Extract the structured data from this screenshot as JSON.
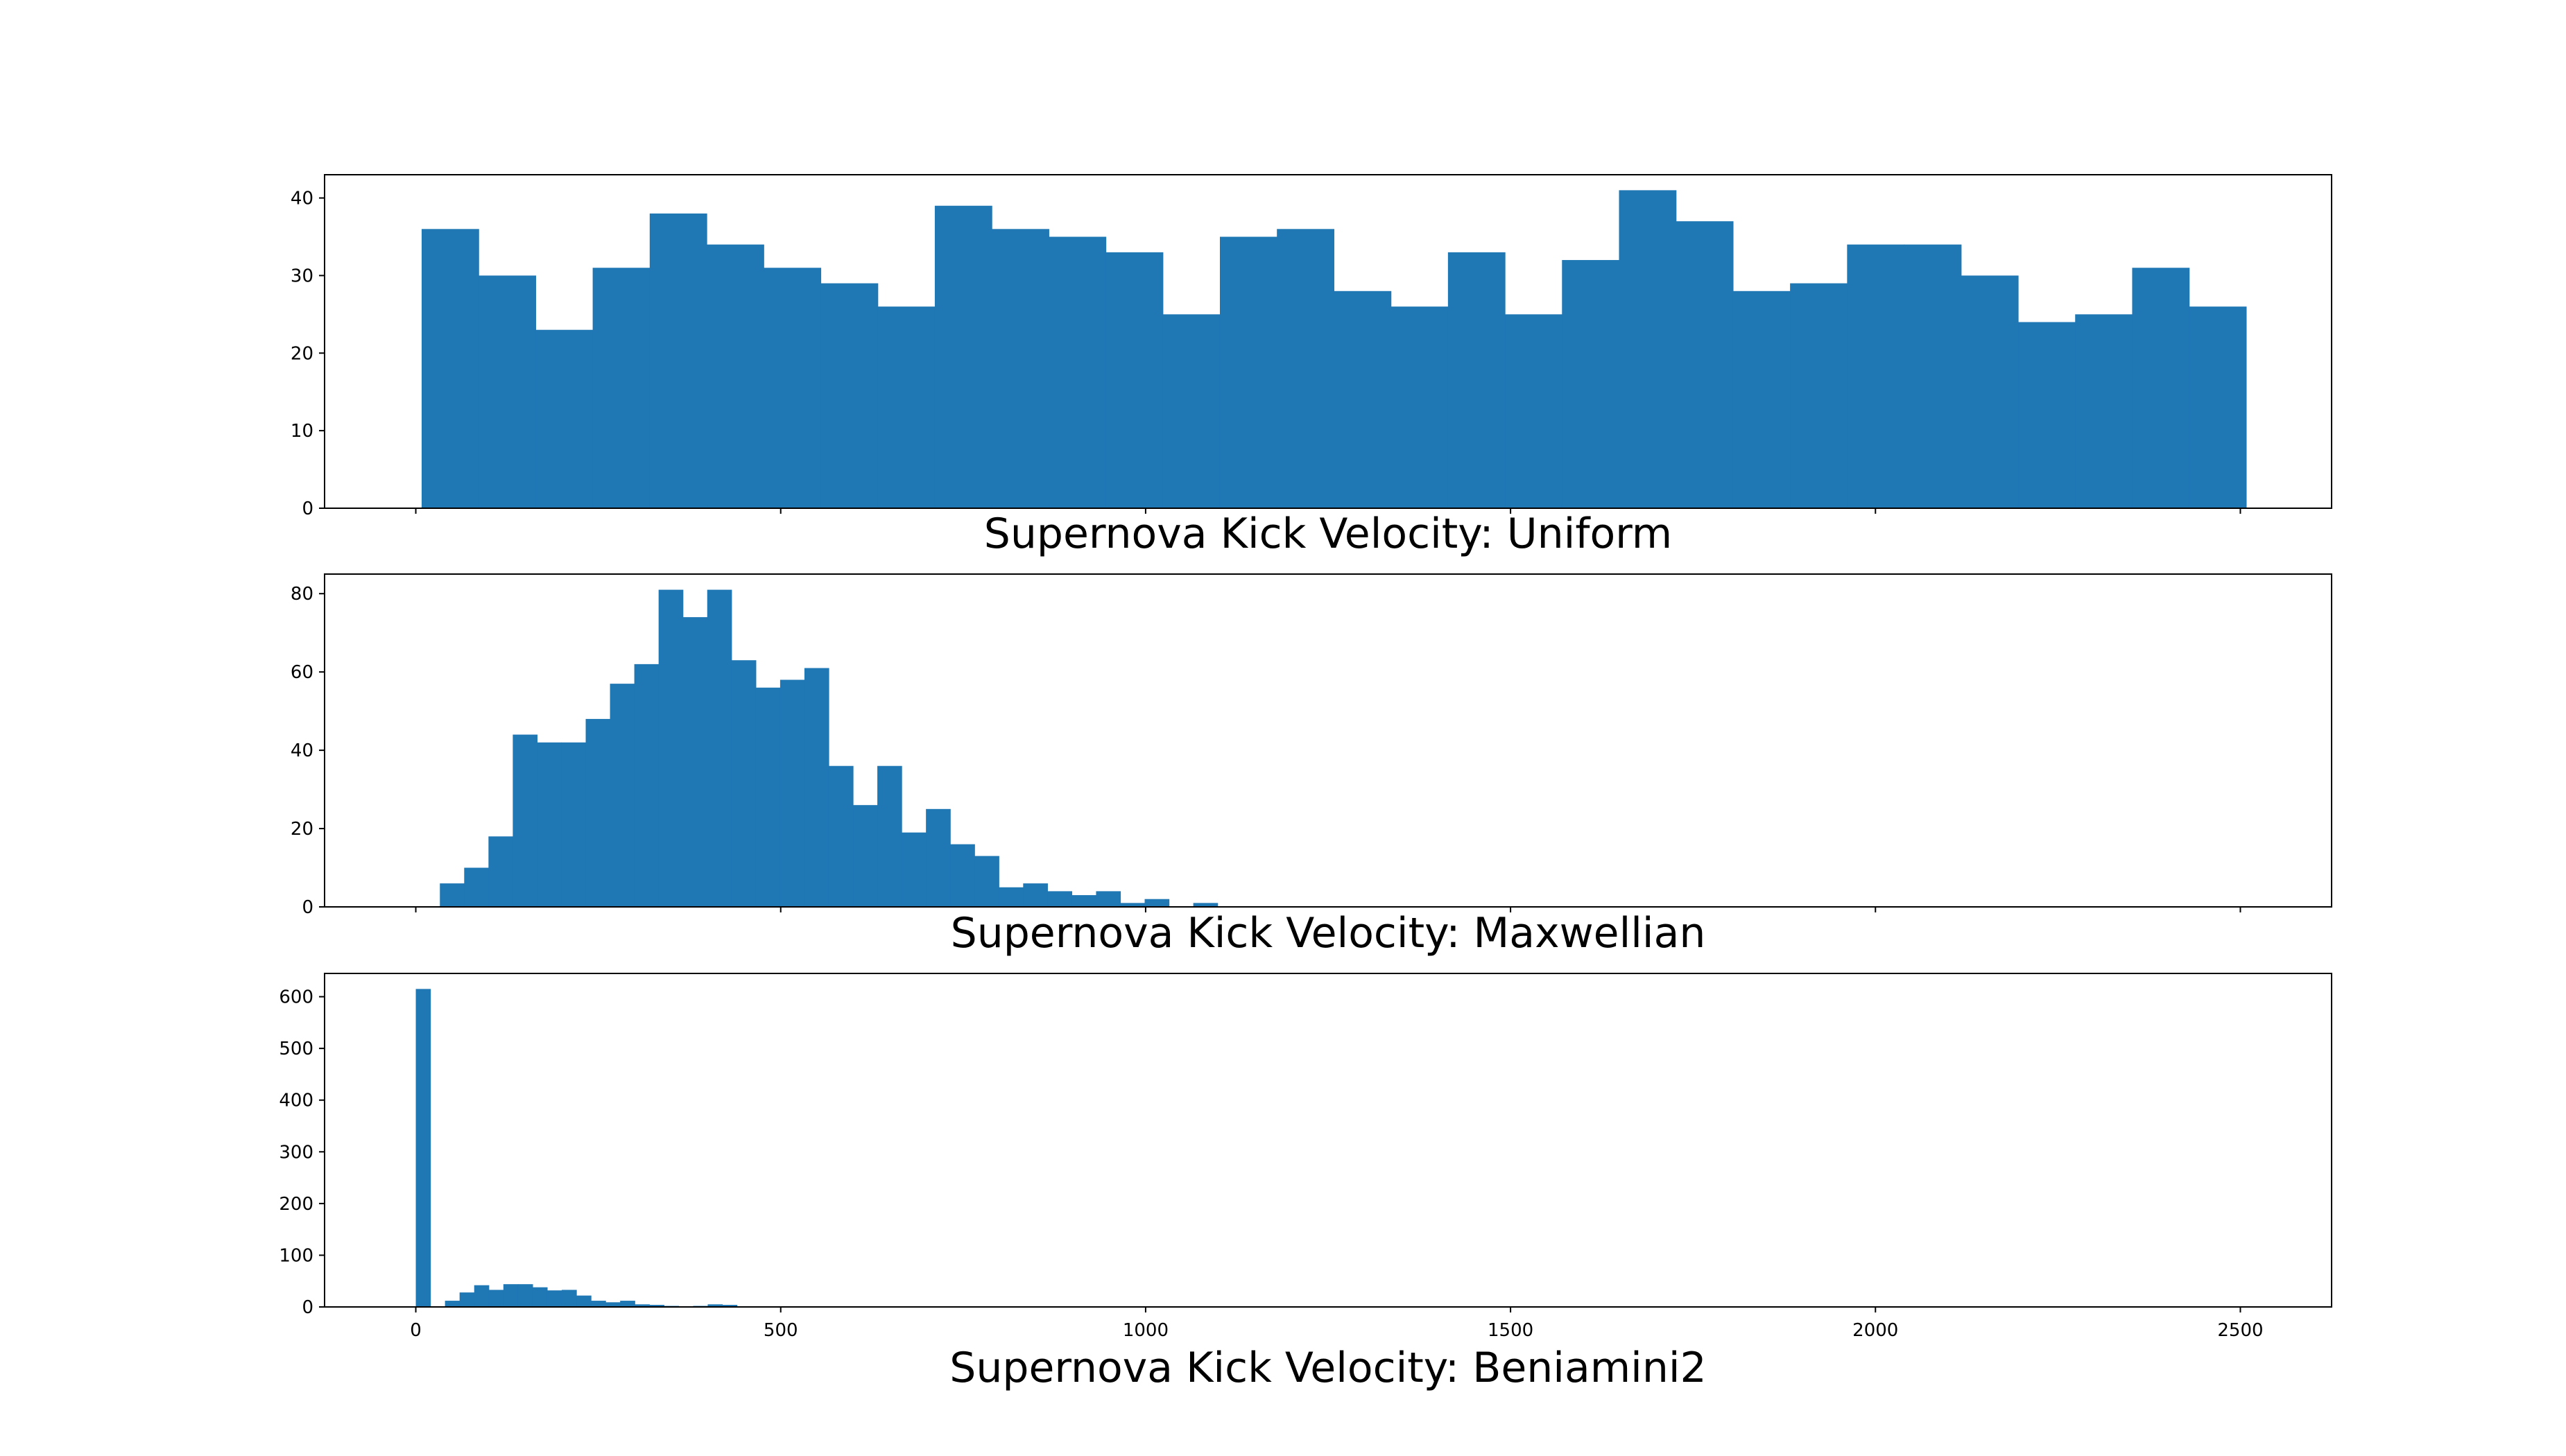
{
  "chart_data": [
    {
      "type": "bar",
      "title": "Supernova Kick Velocity: Uniform",
      "xlabel": "",
      "ylabel": "",
      "xlim": [
        -125,
        2625
      ],
      "ylim": [
        0,
        43
      ],
      "xticks": [
        0,
        500,
        1000,
        1500,
        2000,
        2500
      ],
      "yticks": [
        0,
        10,
        20,
        30,
        40
      ],
      "show_xtick_labels": false,
      "grid": false,
      "color": "#1f77b4",
      "bin_edges": [
        8,
        86.125,
        164.25,
        242.375,
        320.5,
        398.625,
        476.75,
        554.875,
        633,
        711.125,
        789.25,
        867.375,
        945.5,
        1023.625,
        1101.75,
        1179.875,
        1258,
        1336.125,
        1414.25,
        1492.375,
        1570.5,
        1648.625,
        1726.75,
        1804.875,
        1883,
        1961.125,
        2039.25,
        2117.375,
        2195.5,
        2273.625,
        2351.75,
        2429.875,
        2508
      ],
      "values": [
        36,
        30,
        23,
        31,
        38,
        34,
        31,
        29,
        26,
        39,
        36,
        35,
        33,
        25,
        35,
        36,
        28,
        26,
        33,
        25,
        32,
        41,
        37,
        28,
        29,
        34,
        34,
        30,
        24,
        25,
        31,
        26
      ]
    },
    {
      "type": "bar",
      "title": "Supernova Kick Velocity: Maxwellian",
      "xlabel": "",
      "ylabel": "",
      "xlim": [
        -125,
        2625
      ],
      "ylim": [
        0,
        85
      ],
      "xticks": [
        0,
        500,
        1000,
        1500,
        2000,
        2500
      ],
      "yticks": [
        0,
        20,
        40,
        60,
        80
      ],
      "show_xtick_labels": false,
      "grid": false,
      "color": "#1f77b4",
      "bin_edges": [
        33,
        66.3,
        99.6,
        132.9,
        166.2,
        199.5,
        232.8,
        266.1,
        299.4,
        332.7,
        366,
        399.3,
        432.6,
        465.9,
        499.2,
        532.5,
        565.8,
        599.1,
        632.4,
        665.7,
        699,
        732.3,
        765.6,
        798.9,
        832.2,
        865.5,
        898.8,
        932.1,
        965.4,
        998.7,
        1032,
        1065.3,
        1098.6
      ],
      "values": [
        6,
        10,
        18,
        44,
        42,
        42,
        48,
        57,
        62,
        81,
        74,
        81,
        63,
        56,
        58,
        61,
        36,
        26,
        36,
        19,
        25,
        16,
        13,
        5,
        6,
        4,
        3,
        4,
        1,
        2,
        0,
        1
      ]
    },
    {
      "type": "bar",
      "title": "Supernova Kick Velocity: Beniamini2",
      "xlabel": "",
      "ylabel": "",
      "xlim": [
        -125,
        2625
      ],
      "ylim": [
        0,
        645
      ],
      "xticks": [
        0,
        500,
        1000,
        1500,
        2000,
        2500
      ],
      "xtick_labels": [
        "0",
        "500",
        "1000",
        "1500",
        "2000",
        "2500"
      ],
      "yticks": [
        0,
        100,
        200,
        300,
        400,
        500,
        600
      ],
      "show_xtick_labels": true,
      "grid": false,
      "color": "#1f77b4",
      "bin_edges": [
        0,
        20,
        40,
        60,
        80,
        100,
        120,
        140,
        160,
        180,
        200,
        220,
        240,
        260,
        280,
        300,
        320,
        340,
        360,
        380,
        400,
        420,
        440
      ],
      "values": [
        615,
        0,
        12,
        28,
        42,
        33,
        44,
        44,
        38,
        32,
        33,
        22,
        12,
        9,
        12,
        5,
        4,
        2,
        1,
        2,
        5,
        4
      ]
    }
  ]
}
